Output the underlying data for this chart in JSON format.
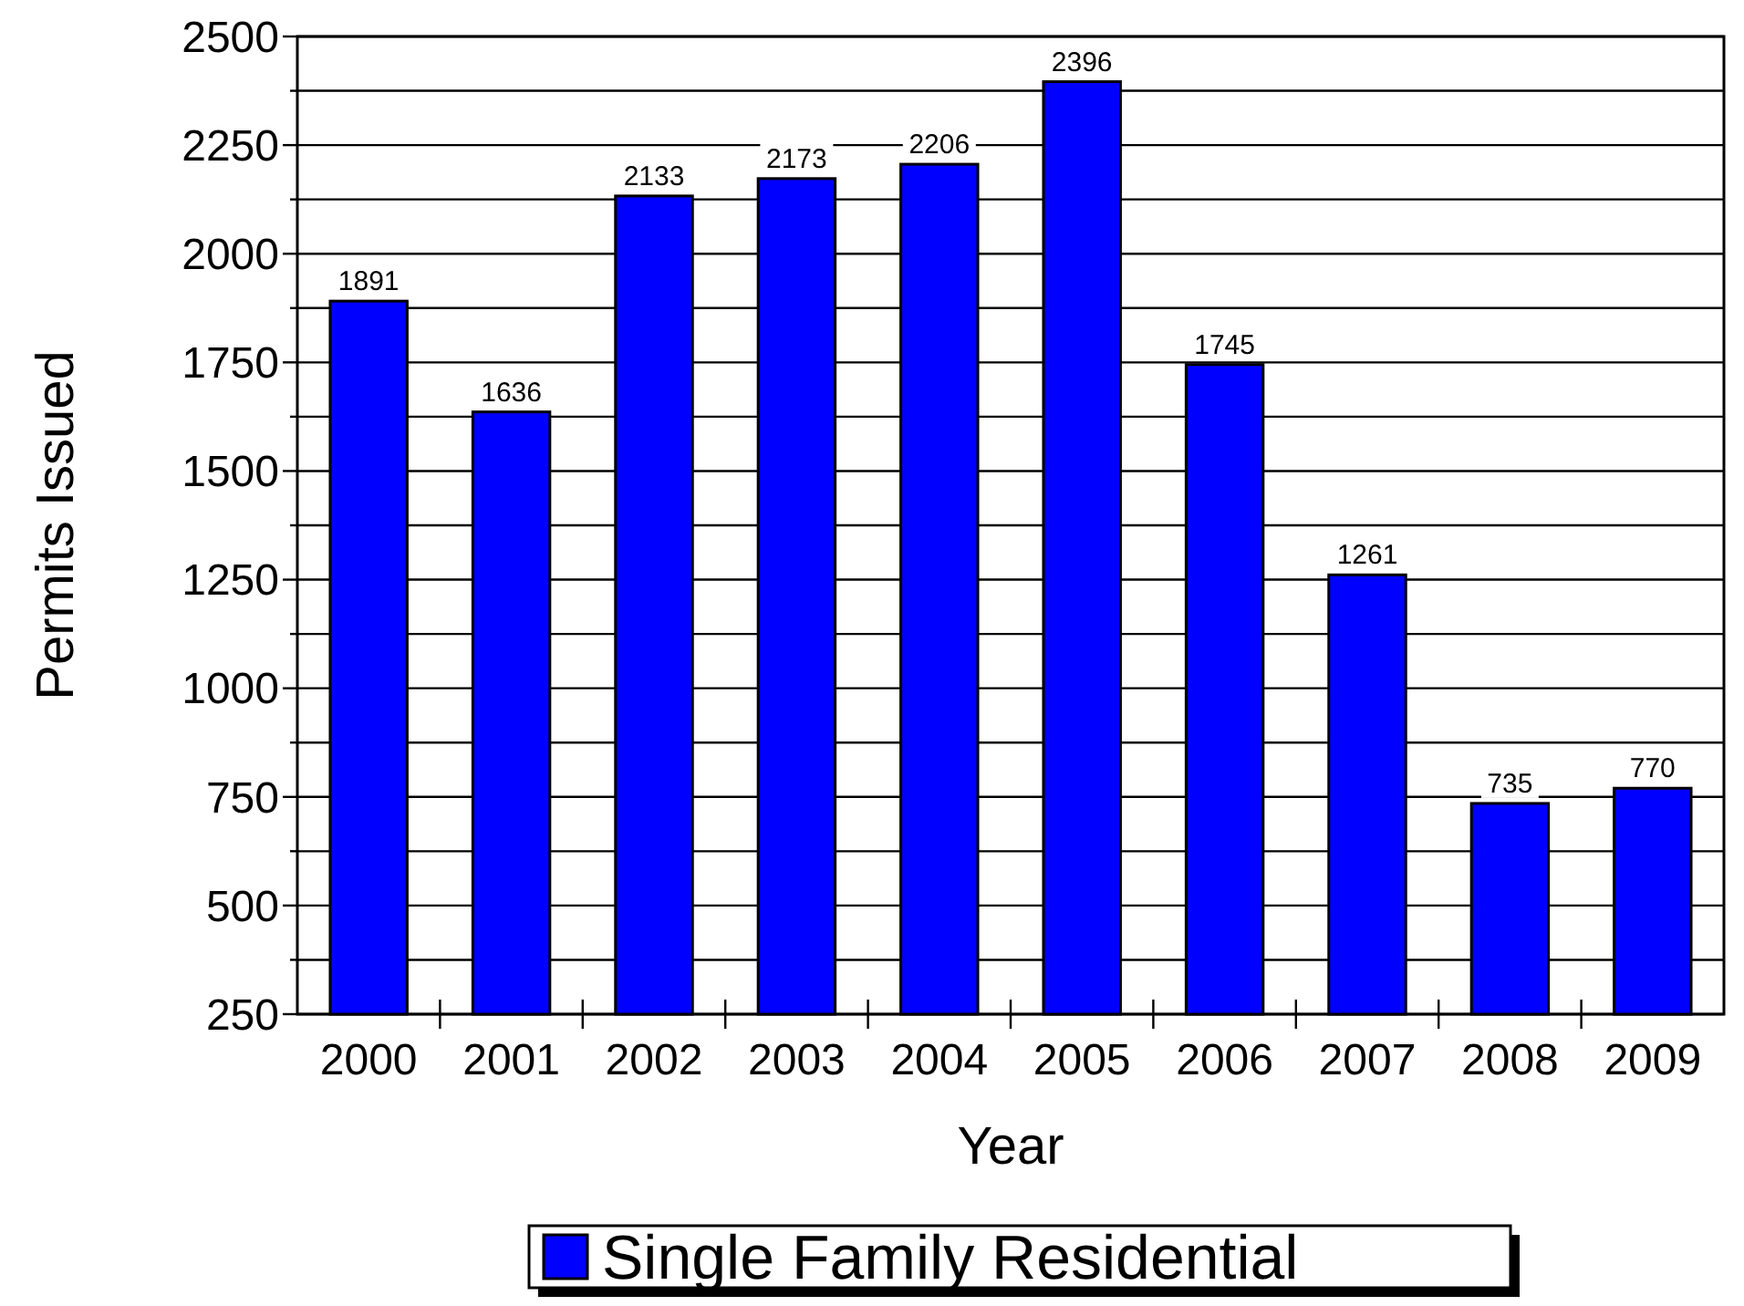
{
  "chart_data": {
    "type": "bar",
    "xlabel": "Year",
    "ylabel": "Permits Issued",
    "categories": [
      "2000",
      "2001",
      "2002",
      "2003",
      "2004",
      "2005",
      "2006",
      "2007",
      "2008",
      "2009"
    ],
    "series": [
      {
        "name": "Single Family Residential",
        "color": "#0000ff",
        "values": [
          1891,
          1636,
          2133,
          2173,
          2206,
          2396,
          1745,
          1261,
          735,
          770
        ]
      }
    ],
    "ylim": [
      250,
      2500
    ],
    "yticks": [
      250,
      {
        "value": 375,
        "label": null
      },
      500,
      {
        "value": 625,
        "label": null
      },
      750,
      {
        "value": 875,
        "label": null
      },
      1000,
      {
        "value": 1125,
        "label": null
      },
      1250,
      {
        "value": 1375,
        "label": null
      },
      1500,
      {
        "value": 1625,
        "label": null
      },
      1750,
      {
        "value": 1875,
        "label": null
      },
      2000,
      {
        "value": 2125,
        "label": null
      },
      2250,
      {
        "value": 2375,
        "label": null
      },
      2500
    ],
    "grid": "y",
    "legend": "bottom",
    "data_labels": true
  }
}
